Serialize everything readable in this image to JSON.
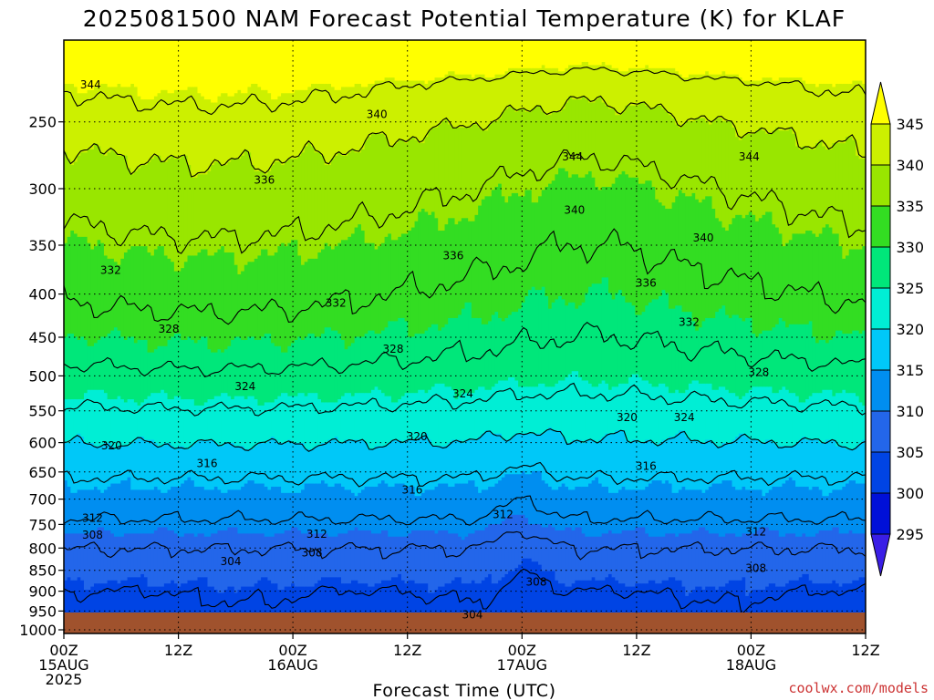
{
  "chart_data": {
    "type": "heatmap",
    "title": "2025081500 NAM Forecast Potential Temperature (K) for KLAF",
    "xlabel": "Forecast Time (UTC)",
    "ylabel": "",
    "x_ticks": [
      {
        "hour": 0,
        "lines": [
          "00Z",
          "15AUG",
          "2025"
        ]
      },
      {
        "hour": 12,
        "lines": [
          "12Z"
        ]
      },
      {
        "hour": 24,
        "lines": [
          "00Z",
          "16AUG"
        ]
      },
      {
        "hour": 36,
        "lines": [
          "12Z"
        ]
      },
      {
        "hour": 48,
        "lines": [
          "00Z",
          "17AUG"
        ]
      },
      {
        "hour": 60,
        "lines": [
          "12Z"
        ]
      },
      {
        "hour": 72,
        "lines": [
          "00Z",
          "18AUG"
        ]
      },
      {
        "hour": 84,
        "lines": [
          "12Z"
        ]
      }
    ],
    "xlim": [
      0,
      84
    ],
    "y_ticks": [
      250,
      300,
      350,
      400,
      450,
      500,
      550,
      600,
      650,
      700,
      750,
      800,
      850,
      900,
      950,
      1000
    ],
    "ylim": [
      1010,
      200
    ],
    "y_scale": "log",
    "grid": true,
    "colorbar": {
      "ticks": [
        345,
        340,
        335,
        330,
        325,
        320,
        315,
        310,
        305,
        300,
        295
      ],
      "bins": [
        {
          "lo": 345,
          "hi": 400,
          "color": "#ffff00"
        },
        {
          "lo": 340,
          "hi": 345,
          "color": "#ccf000"
        },
        {
          "lo": 335,
          "hi": 340,
          "color": "#99e600"
        },
        {
          "lo": 330,
          "hi": 335,
          "color": "#33dd22"
        },
        {
          "lo": 325,
          "hi": 330,
          "color": "#00e77a"
        },
        {
          "lo": 320,
          "hi": 325,
          "color": "#00eed5"
        },
        {
          "lo": 315,
          "hi": 320,
          "color": "#00c8f8"
        },
        {
          "lo": 310,
          "hi": 315,
          "color": "#008ef0"
        },
        {
          "lo": 305,
          "hi": 310,
          "color": "#2366ea"
        },
        {
          "lo": 300,
          "hi": 305,
          "color": "#0044e4"
        },
        {
          "lo": 295,
          "hi": 300,
          "color": "#0010d8"
        },
        {
          "lo": 250,
          "hi": 295,
          "color": "#3a1ee6"
        }
      ]
    },
    "contour_levels": [
      304,
      308,
      312,
      316,
      320,
      324,
      328,
      332,
      336,
      340,
      344
    ],
    "contour_labels": [
      {
        "level": 344,
        "hour": 2.8,
        "p": 226
      },
      {
        "level": 344,
        "hour": 53.3,
        "p": 275
      },
      {
        "level": 344,
        "hour": 71.8,
        "p": 275
      },
      {
        "level": 340,
        "hour": 32.8,
        "p": 245
      },
      {
        "level": 340,
        "hour": 53.5,
        "p": 318
      },
      {
        "level": 340,
        "hour": 67.0,
        "p": 343
      },
      {
        "level": 336,
        "hour": 21.0,
        "p": 293
      },
      {
        "level": 336,
        "hour": 40.8,
        "p": 360
      },
      {
        "level": 336,
        "hour": 61.0,
        "p": 388
      },
      {
        "level": 332,
        "hour": 4.9,
        "p": 375
      },
      {
        "level": 332,
        "hour": 28.5,
        "p": 410
      },
      {
        "level": 332,
        "hour": 65.5,
        "p": 432
      },
      {
        "level": 328,
        "hour": 11.0,
        "p": 440
      },
      {
        "level": 328,
        "hour": 34.5,
        "p": 465
      },
      {
        "level": 328,
        "hour": 72.8,
        "p": 495
      },
      {
        "level": 324,
        "hour": 19.0,
        "p": 515
      },
      {
        "level": 324,
        "hour": 41.8,
        "p": 525
      },
      {
        "level": 324,
        "hour": 65.0,
        "p": 560
      },
      {
        "level": 320,
        "hour": 5.0,
        "p": 605
      },
      {
        "level": 320,
        "hour": 37.0,
        "p": 590
      },
      {
        "level": 320,
        "hour": 59.0,
        "p": 560
      },
      {
        "level": 316,
        "hour": 15.0,
        "p": 635
      },
      {
        "level": 316,
        "hour": 36.5,
        "p": 683
      },
      {
        "level": 316,
        "hour": 61.0,
        "p": 640
      },
      {
        "level": 312,
        "hour": 3.0,
        "p": 737
      },
      {
        "level": 312,
        "hour": 26.5,
        "p": 770
      },
      {
        "level": 312,
        "hour": 46.0,
        "p": 730
      },
      {
        "level": 312,
        "hour": 72.5,
        "p": 765
      },
      {
        "level": 308,
        "hour": 3.0,
        "p": 772
      },
      {
        "level": 308,
        "hour": 26.0,
        "p": 810
      },
      {
        "level": 308,
        "hour": 49.5,
        "p": 878
      },
      {
        "level": 308,
        "hour": 72.5,
        "p": 845
      },
      {
        "level": 304,
        "hour": 17.5,
        "p": 830
      },
      {
        "level": 304,
        "hour": 42.8,
        "p": 960
      }
    ]
  },
  "credit": "coolwx.com/models",
  "colors": {
    "ground": "#a0522d",
    "contour": "#000000",
    "grid": "#000000",
    "credit": "#cc3333"
  }
}
